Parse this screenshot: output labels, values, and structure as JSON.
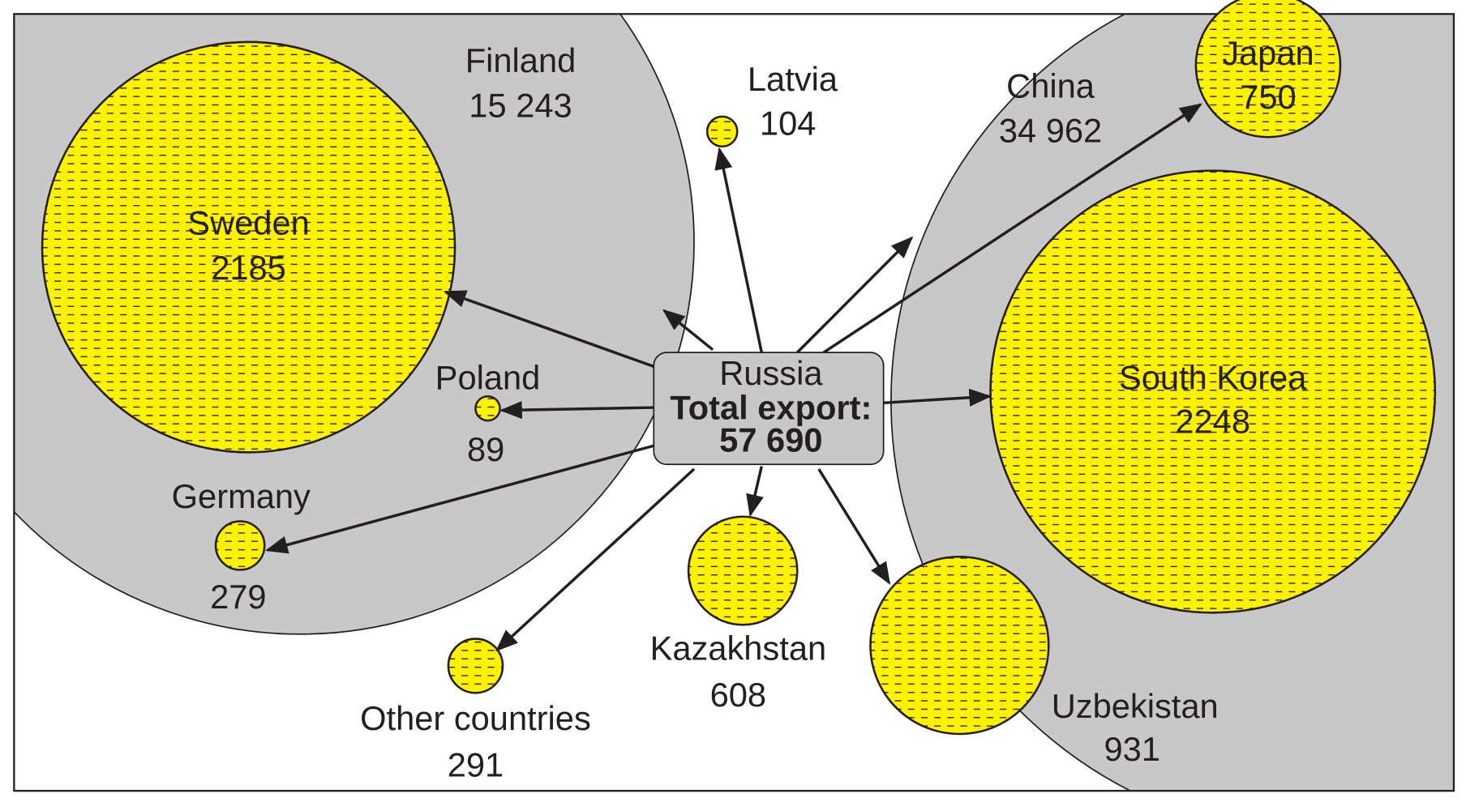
{
  "center": {
    "label": "Russia",
    "title": "Total export:",
    "value": "57 690"
  },
  "nodes": [
    {
      "label": "Finland",
      "value": "15 243"
    },
    {
      "label": "Sweden",
      "value": "2185"
    },
    {
      "label": "Poland",
      "value": "89"
    },
    {
      "label": "Germany",
      "value": "279"
    },
    {
      "label": "Latvia",
      "value": "104"
    },
    {
      "label": "Kazakhstan",
      "value": "608"
    },
    {
      "label": "Other countries",
      "value": "291"
    },
    {
      "label": "China",
      "value": "34 962"
    },
    {
      "label": "Japan",
      "value": "750"
    },
    {
      "label": "South Korea",
      "value": "2248"
    },
    {
      "label": "Uzbekistan",
      "value": "931"
    }
  ]
}
